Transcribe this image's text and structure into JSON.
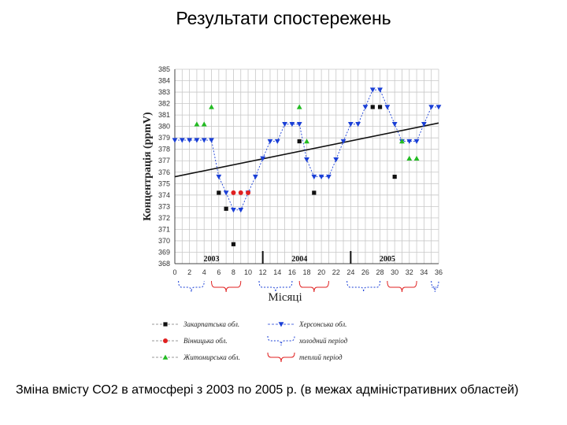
{
  "slide_title": "Результати спостережень",
  "caption": "Зміна вмісту СО2 в атмосфері з 2003 по 2005 р. (в межах адміністративних областей)",
  "chart_data": {
    "type": "line",
    "title": "",
    "xlabel": "Місяці",
    "ylabel": "Концентрація (ppmV)",
    "xlim": [
      0,
      36
    ],
    "ylim": [
      368,
      385
    ],
    "x_ticks": [
      "0",
      "2",
      "4",
      "6",
      "8",
      "10",
      "12",
      "14",
      "16",
      "18",
      "20",
      "22",
      "24",
      "26",
      "28",
      "30",
      "32",
      "34",
      "36"
    ],
    "y_ticks": [
      "368",
      "369",
      "370",
      "371",
      "372",
      "373",
      "374",
      "375",
      "376",
      "377",
      "378",
      "379",
      "380",
      "381",
      "382",
      "383",
      "384",
      "385"
    ],
    "year_labels": [
      {
        "text": "2003",
        "x": 5
      },
      {
        "text": "2004",
        "x": 17
      },
      {
        "text": "2005",
        "x": 29
      }
    ],
    "year_separators": [
      12,
      24
    ],
    "grid": true,
    "series": [
      {
        "name": "Херсонська обл.",
        "color": "#1a3fd6",
        "marker": "triangle-down",
        "connected": true,
        "points": [
          [
            0,
            378.8
          ],
          [
            1,
            378.8
          ],
          [
            2,
            378.8
          ],
          [
            3,
            378.8
          ],
          [
            4,
            378.8
          ],
          [
            5,
            378.8
          ],
          [
            6,
            375.6
          ],
          [
            7,
            374.2
          ],
          [
            8,
            372.7
          ],
          [
            9,
            372.7
          ],
          [
            10,
            374.2
          ],
          [
            11,
            375.6
          ],
          [
            12,
            377.2
          ],
          [
            13,
            378.7
          ],
          [
            14,
            378.7
          ],
          [
            15,
            380.2
          ],
          [
            16,
            380.2
          ],
          [
            17,
            380.2
          ],
          [
            18,
            377.1
          ],
          [
            19,
            375.6
          ],
          [
            20,
            375.6
          ],
          [
            21,
            375.6
          ],
          [
            22,
            377.1
          ],
          [
            23,
            378.7
          ],
          [
            24,
            380.2
          ],
          [
            25,
            380.2
          ],
          [
            26,
            381.7
          ],
          [
            27,
            383.2
          ],
          [
            28,
            383.2
          ],
          [
            29,
            381.7
          ],
          [
            30,
            380.2
          ],
          [
            31,
            378.7
          ],
          [
            32,
            378.7
          ],
          [
            33,
            378.7
          ],
          [
            34,
            380.2
          ],
          [
            35,
            381.7
          ],
          [
            36,
            381.7
          ]
        ]
      },
      {
        "name": "Закарпатська обл.",
        "color": "#111111",
        "marker": "square",
        "connected": false,
        "points": [
          [
            6,
            374.2
          ],
          [
            7,
            372.8
          ],
          [
            8,
            369.7
          ],
          [
            17,
            378.7
          ],
          [
            19,
            374.2
          ],
          [
            27,
            381.7
          ],
          [
            28,
            381.7
          ],
          [
            30,
            375.6
          ]
        ]
      },
      {
        "name": "Вінницька обл.",
        "color": "#e02020",
        "marker": "circle",
        "connected": false,
        "points": [
          [
            8,
            374.2
          ],
          [
            9,
            374.2
          ],
          [
            10,
            374.2
          ]
        ]
      },
      {
        "name": "Житомирська обл.",
        "color": "#22bb22",
        "marker": "triangle-up",
        "connected": false,
        "points": [
          [
            3,
            380.2
          ],
          [
            4,
            380.2
          ],
          [
            5,
            381.7
          ],
          [
            17,
            381.7
          ],
          [
            18,
            378.7
          ],
          [
            31,
            378.7
          ],
          [
            32,
            377.2
          ],
          [
            33,
            377.2
          ]
        ]
      }
    ],
    "trend": {
      "from": [
        0,
        375.6
      ],
      "to": [
        36,
        380.3
      ],
      "color": "#111111"
    },
    "legend": {
      "placement": "bottom",
      "items": [
        {
          "label": "Закарпатська обл.",
          "kind": "square",
          "color": "#111111"
        },
        {
          "label": "Вінницька обл.",
          "kind": "circle",
          "color": "#e02020"
        },
        {
          "label": "Житомирська обл.",
          "kind": "triangle-up",
          "color": "#22bb22"
        },
        {
          "label": "Херсонська обл.",
          "kind": "triangle-down",
          "color": "#1a3fd6"
        },
        {
          "label": "холодний період",
          "kind": "cold-brace",
          "color": "#1a3fd6"
        },
        {
          "label": "теплий період",
          "kind": "warm-brace",
          "color": "#e02020"
        }
      ]
    }
  }
}
